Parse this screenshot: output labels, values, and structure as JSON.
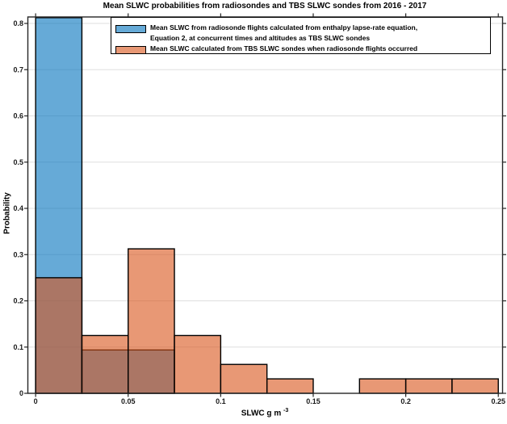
{
  "chart_data": {
    "type": "histogram",
    "title": "Mean SLWC probabilities from radiosondes and TBS SLWC sondes from 2016 - 2017",
    "ylabel": "Probability",
    "xlabel_main": "SLWC g m",
    "xlabel_sup": "-3",
    "bin_start": 0,
    "bin_width": 0.025,
    "xlim": [
      -0.0042,
      0.2523
    ],
    "ylim": [
      0,
      0.814
    ],
    "xticks": [
      0,
      0.05,
      0.1,
      0.15,
      0.2,
      0.25
    ],
    "yticks": [
      0,
      0.1,
      0.2,
      0.3,
      0.4,
      0.5,
      0.6,
      0.7,
      0.8
    ],
    "grid": "horizontal-only",
    "grid_color": "#dfdfdf",
    "edge_color": "#000000",
    "axis_color": "#262626",
    "face_alpha": 0.6,
    "series": [
      {
        "name": "radiosonde-mean-slwc",
        "color": "#0072BD",
        "values": [
          0.8125,
          0.09375,
          0.09375,
          0,
          0,
          0,
          0,
          0,
          0,
          0
        ]
      },
      {
        "name": "tbs-mean-slwc",
        "color": "#D95319",
        "values": [
          0.25,
          0.125,
          0.3125,
          0.125,
          0.0625,
          0.03125,
          0,
          0.03125,
          0.03125,
          0.03125
        ]
      }
    ],
    "legend": {
      "position": "north",
      "entries": [
        {
          "series": "radiosonde-mean-slwc",
          "lines": [
            "Mean SLWC from radiosonde flights calculated from enthalpy lapse-rate equation,",
            "Equation 2, at concurrent times and altitudes as TBS SLWC sondes"
          ]
        },
        {
          "series": "tbs-mean-slwc",
          "lines": [
            "Mean SLWC calculated from TBS SLWC sondes when radiosonde flights occurred"
          ]
        }
      ]
    }
  }
}
